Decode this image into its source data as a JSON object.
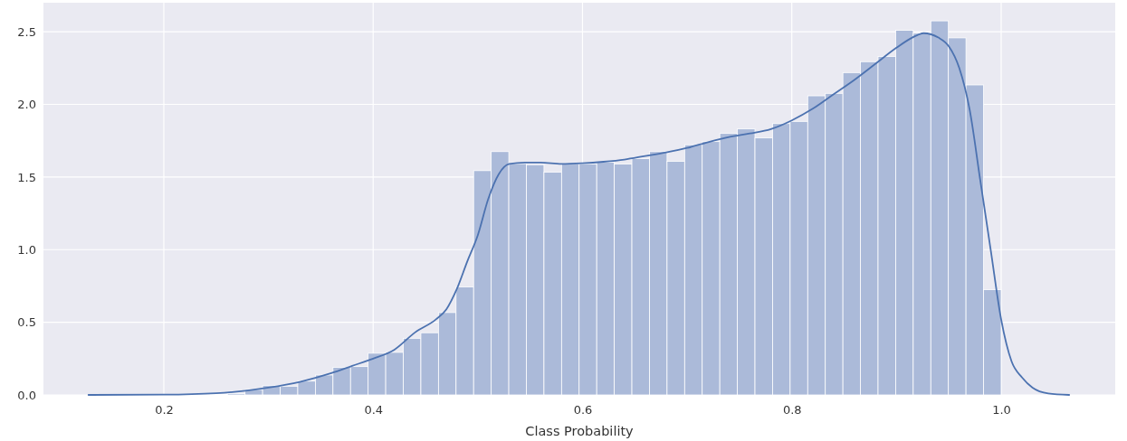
{
  "chart_data": {
    "type": "histogram",
    "xlabel": "Class Probability",
    "xlim": [
      0.085,
      1.109
    ],
    "ylim": [
      0,
      2.7
    ],
    "xticks": [
      0.2,
      0.4,
      0.6,
      0.8,
      {
        "value": 1.0,
        "label": "1.0"
      }
    ],
    "yticks": [
      {
        "value": 0,
        "label": "0.0"
      },
      0.5,
      {
        "value": 1.0,
        "label": "1.0"
      },
      1.5,
      {
        "value": 2.0,
        "label": "2.0"
      },
      2.5
    ],
    "grid": true,
    "series": [
      {
        "color": "#abbad9",
        "bins": [
          0.244,
          0.2608,
          0.2776,
          0.2944,
          0.3112,
          0.328,
          0.3448,
          0.3616,
          0.3784,
          0.3952,
          0.412,
          0.4288,
          0.4456,
          0.4624,
          0.4792,
          0.496,
          0.5128,
          0.5296,
          0.5464,
          0.5632,
          0.58,
          0.5968,
          0.6136,
          0.6304,
          0.6472,
          0.664,
          0.6808,
          0.6976,
          0.7144,
          0.7312,
          0.748,
          0.7648,
          0.7816,
          0.7984,
          0.8152,
          0.832,
          0.8488,
          0.8656,
          0.8824,
          0.8992,
          0.916,
          0.9328,
          0.9496,
          0.9664,
          0.9832,
          1.0
        ],
        "values": [
          0.005,
          0.01,
          0.037,
          0.064,
          0.06,
          0.095,
          0.137,
          0.19,
          0.195,
          0.287,
          0.293,
          0.39,
          0.428,
          0.567,
          0.744,
          1.544,
          1.675,
          1.592,
          1.585,
          1.534,
          1.592,
          1.59,
          1.602,
          1.59,
          1.627,
          1.675,
          1.608,
          1.722,
          1.744,
          1.8,
          1.831,
          1.769,
          1.868,
          1.883,
          2.059,
          2.076,
          2.219,
          2.294,
          2.33,
          2.51,
          2.49,
          2.575,
          2.458,
          2.134,
          0.725
        ]
      },
      {
        "type": "line",
        "color": "#4c72b0",
        "x": [
          0.128,
          0.2,
          0.25,
          0.28,
          0.3,
          0.33,
          0.36,
          0.38,
          0.4,
          0.42,
          0.44,
          0.46,
          0.47,
          0.48,
          0.49,
          0.5,
          0.51,
          0.52,
          0.53,
          0.545,
          0.56,
          0.58,
          0.6,
          0.62,
          0.64,
          0.66,
          0.68,
          0.7,
          0.72,
          0.74,
          0.76,
          0.78,
          0.8,
          0.82,
          0.84,
          0.86,
          0.88,
          0.9,
          0.915,
          0.926,
          0.94,
          0.95,
          0.96,
          0.97,
          0.98,
          0.99,
          1.0,
          1.01,
          1.02,
          1.03,
          1.045,
          1.065
        ],
        "values": [
          0,
          0.002,
          0.012,
          0.03,
          0.05,
          0.09,
          0.15,
          0.2,
          0.25,
          0.31,
          0.43,
          0.52,
          0.59,
          0.73,
          0.92,
          1.1,
          1.35,
          1.52,
          1.59,
          1.6,
          1.6,
          1.59,
          1.595,
          1.605,
          1.62,
          1.645,
          1.67,
          1.7,
          1.74,
          1.775,
          1.8,
          1.83,
          1.89,
          1.97,
          2.07,
          2.17,
          2.28,
          2.39,
          2.46,
          2.49,
          2.46,
          2.4,
          2.25,
          1.96,
          1.48,
          1.0,
          0.52,
          0.23,
          0.12,
          0.05,
          0.01,
          0
        ]
      }
    ]
  }
}
